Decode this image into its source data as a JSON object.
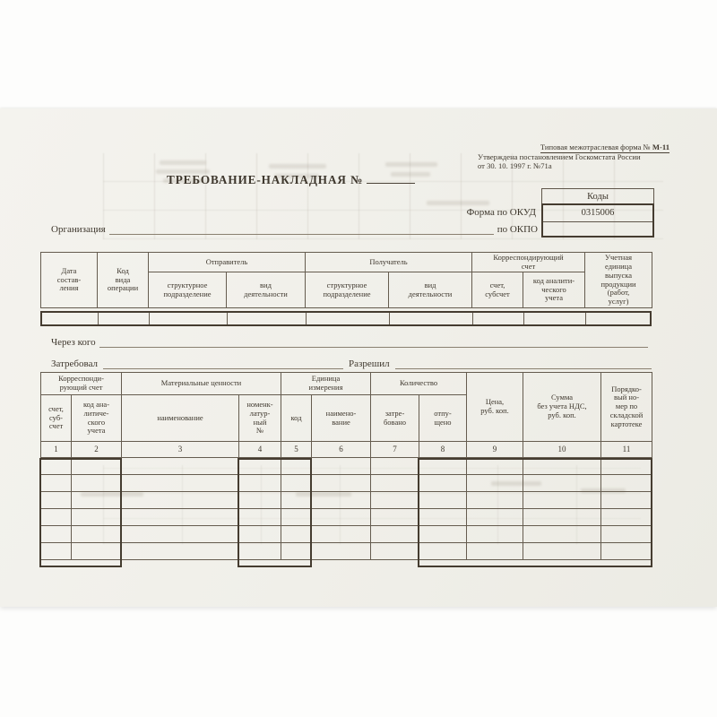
{
  "header": {
    "form_type_prefix": "Типовая межотраслевая форма №",
    "form_type_code": "М-11",
    "approved_line1": "Утверждена постановлением Госкомстата России",
    "approved_line2": "от 30. 10. 1997 г. №71а",
    "title": "ТРЕБОВАНИЕ-НАКЛАДНАЯ №",
    "codes_header": "Коды",
    "okud_label": "Форма по ОКУД",
    "okud_value": "0315006",
    "okpo_label": "по ОКПО",
    "okpo_value": "",
    "org_label": "Организация"
  },
  "upper_table": {
    "date_col": "Дата\nсостав-\nления",
    "op_code_col": "Код\nвида\nоперации",
    "sender_group": "Отправитель",
    "receiver_group": "Получатель",
    "corr_group": "Корреспондирующий\nсчет",
    "struct_unit": "структурное\nподразделение",
    "activity": "вид\nдеятельности",
    "account": "счет,\nсубсчет",
    "analytic_code": "код аналити-\nческого\nучета",
    "unit_col": "Учетная\nединица\nвыпуска\nпродукции\n(работ,\nуслуг)"
  },
  "middle": {
    "through_label": "Через кого",
    "requested_label": "Затребовал",
    "allowed_label": "Разрешил"
  },
  "lower_table": {
    "corr_group": "Корреспонди-\nрующий счет",
    "materials_group": "Материальные ценности",
    "unit_group": "Единица\nизмерения",
    "qty_group": "Количество",
    "price_col": "Цена,\nруб. коп.",
    "sum_col": "Сумма\nбез учета НДС,\nруб. коп.",
    "card_col": "Порядко-\nвый но-\nмер по\nскладской\nкартотеке",
    "account_sub": "счет,\nсуб-\nсчет",
    "analytic_sub": "код ана-\nлитиче-\nского\nучета",
    "name_sub": "наименование",
    "nomenclature_sub": "номенк-\nлатур-\nный\n№",
    "code_sub": "код",
    "unit_name_sub": "наимено-\nвание",
    "requested_sub": "затре-\nбовано",
    "released_sub": "отпу-\nщено",
    "column_numbers": [
      "1",
      "2",
      "3",
      "4",
      "5",
      "6",
      "7",
      "8",
      "9",
      "10",
      "11"
    ],
    "body_rows": 6,
    "body_cols": 11
  }
}
